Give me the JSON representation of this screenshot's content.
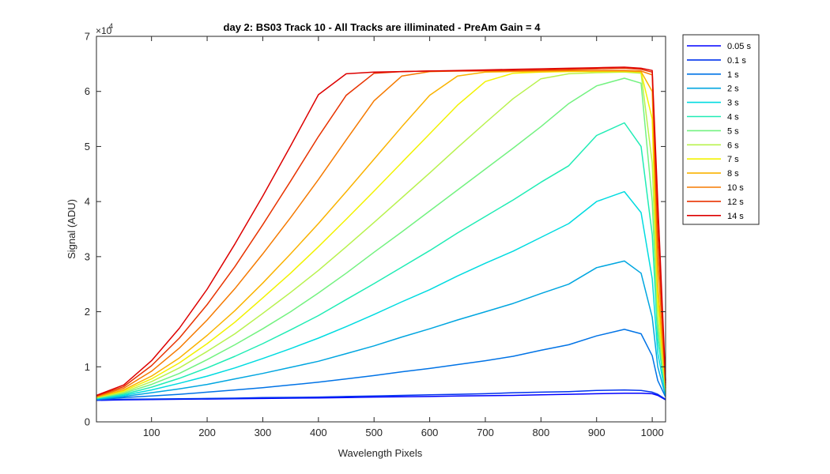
{
  "chart_data": {
    "type": "line",
    "title": "day 2: BS03  Track 10 - All Tracks are illiminated - PreAm Gain = 4",
    "xlabel": "Wavelength Pixels",
    "ylabel": "Signal (ADU)",
    "xlim": [
      1,
      1024
    ],
    "ylim": [
      0,
      70000
    ],
    "x_ticks": [
      100,
      200,
      300,
      400,
      500,
      600,
      700,
      800,
      900,
      1000
    ],
    "y_ticks": [
      0,
      10000,
      20000,
      30000,
      40000,
      50000,
      60000,
      70000
    ],
    "y_tick_labels": [
      "0",
      "1",
      "2",
      "3",
      "4",
      "5",
      "6",
      "7"
    ],
    "y_exponent_label": "×10",
    "y_exponent_power": "4",
    "grid": false,
    "legend_position": "outside-top-right",
    "x": [
      1,
      50,
      100,
      150,
      200,
      250,
      300,
      350,
      400,
      450,
      500,
      550,
      600,
      650,
      700,
      750,
      800,
      850,
      900,
      950,
      980,
      1000,
      1010,
      1024
    ],
    "series": [
      {
        "name": "0.05 s",
        "color": "#0000ff",
        "values": [
          3900,
          4000,
          4050,
          4100,
          4150,
          4200,
          4250,
          4300,
          4350,
          4400,
          4500,
          4550,
          4600,
          4700,
          4750,
          4800,
          4900,
          5000,
          5100,
          5200,
          5200,
          5100,
          4800,
          4000
        ]
      },
      {
        "name": "0.1 s",
        "color": "#0033ee",
        "values": [
          4000,
          4100,
          4150,
          4200,
          4250,
          4300,
          4400,
          4450,
          4500,
          4600,
          4700,
          4800,
          4900,
          5000,
          5100,
          5300,
          5400,
          5500,
          5700,
          5800,
          5700,
          5400,
          5000,
          4100
        ]
      },
      {
        "name": "1 s",
        "color": "#0073e6",
        "values": [
          4000,
          4400,
          4700,
          5000,
          5400,
          5800,
          6200,
          6700,
          7200,
          7800,
          8400,
          9100,
          9700,
          10400,
          11100,
          11900,
          13000,
          14000,
          15600,
          16800,
          16000,
          12000,
          7500,
          4500
        ]
      },
      {
        "name": "2 s",
        "color": "#00a6e0",
        "values": [
          4100,
          4600,
          5300,
          6000,
          6800,
          7800,
          8800,
          9900,
          11000,
          12400,
          13800,
          15400,
          16900,
          18500,
          20000,
          21500,
          23300,
          25000,
          28000,
          29200,
          27000,
          19000,
          10000,
          4700
        ]
      },
      {
        "name": "3 s",
        "color": "#00dbe0",
        "values": [
          4200,
          4800,
          5800,
          7000,
          8300,
          9800,
          11500,
          13300,
          15200,
          17300,
          19500,
          21800,
          24000,
          26500,
          28800,
          31000,
          33500,
          36000,
          40000,
          41800,
          38000,
          26000,
          12500,
          5000
        ]
      },
      {
        "name": "4 s",
        "color": "#20ecb5",
        "values": [
          4300,
          5000,
          6300,
          7900,
          9800,
          11900,
          14200,
          16700,
          19300,
          22200,
          25100,
          28100,
          31100,
          34300,
          37300,
          40300,
          43500,
          46500,
          52000,
          54300,
          50000,
          34000,
          15000,
          5300
        ]
      },
      {
        "name": "5 s",
        "color": "#73f280",
        "values": [
          4300,
          5200,
          6800,
          8800,
          11300,
          14000,
          16900,
          20000,
          23400,
          27000,
          30800,
          34500,
          38300,
          42100,
          45900,
          49700,
          53600,
          57800,
          61000,
          62400,
          61500,
          40000,
          17000,
          5500
        ]
      },
      {
        "name": "6 s",
        "color": "#b8f24d",
        "values": [
          4400,
          5400,
          7300,
          9800,
          12800,
          16000,
          19700,
          23500,
          27500,
          31800,
          36200,
          40700,
          45200,
          49800,
          54300,
          58700,
          62300,
          63200,
          63400,
          63500,
          63300,
          47000,
          19000,
          5700
        ]
      },
      {
        "name": "7 s",
        "color": "#f2f200",
        "values": [
          4500,
          5600,
          7800,
          10700,
          14200,
          18100,
          22500,
          27000,
          31800,
          36800,
          41900,
          47100,
          52300,
          57500,
          61800,
          63300,
          63500,
          63600,
          63600,
          63600,
          63500,
          55000,
          22000,
          6000
        ]
      },
      {
        "name": "8 s",
        "color": "#fab300",
        "values": [
          4500,
          5800,
          8300,
          11600,
          15700,
          20200,
          25200,
          30500,
          36000,
          41800,
          47700,
          53600,
          59300,
          62800,
          63500,
          63600,
          63600,
          63700,
          63700,
          63700,
          63600,
          60000,
          25000,
          6200
        ]
      },
      {
        "name": "10 s",
        "color": "#f57a00",
        "values": [
          4600,
          6100,
          9200,
          13400,
          18500,
          24200,
          30500,
          37100,
          44000,
          51200,
          58300,
          62800,
          63600,
          63700,
          63700,
          63700,
          63800,
          63800,
          63800,
          63800,
          63700,
          63000,
          30000,
          6600
        ]
      },
      {
        "name": "12 s",
        "color": "#e83300",
        "values": [
          4700,
          6400,
          10200,
          15200,
          21300,
          28200,
          35800,
          43700,
          51800,
          59300,
          63300,
          63600,
          63700,
          63700,
          63800,
          63800,
          63900,
          64000,
          64100,
          64200,
          64000,
          63500,
          35000,
          7000
        ]
      },
      {
        "name": "14 s",
        "color": "#dd0000",
        "values": [
          4800,
          6700,
          11100,
          17000,
          24100,
          32300,
          41000,
          50100,
          59400,
          63200,
          63500,
          63600,
          63700,
          63800,
          63900,
          64000,
          64100,
          64200,
          64300,
          64400,
          64200,
          63800,
          40000,
          7500
        ]
      }
    ]
  }
}
